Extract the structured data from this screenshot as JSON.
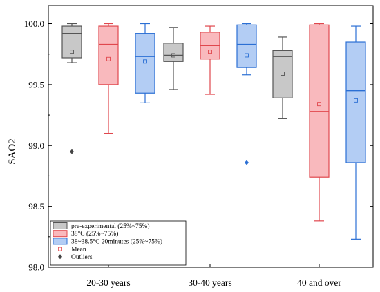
{
  "chart_data": {
    "type": "box",
    "title": "",
    "xlabel": "",
    "ylabel": "SAO2",
    "ylim": [
      98.0,
      100.15
    ],
    "yticks": [
      "98.0",
      "98.5",
      "99.0",
      "99.5",
      "100.0"
    ],
    "ytick_values": [
      98.0,
      98.5,
      99.0,
      99.5,
      100.0
    ],
    "categories": [
      "20-30 years",
      "30-40 years",
      "40 and over"
    ],
    "legend_position": "bottom-left",
    "series": [
      {
        "name": "pre-experimental (25%~75%)",
        "fill": "#c8c8c8",
        "stroke": "#555555",
        "boxes": [
          {
            "whisker_low": 99.68,
            "q1": 99.72,
            "median": 99.92,
            "q3": 99.98,
            "whisker_high": 100.0,
            "mean": 99.77,
            "outliers": [
              98.95
            ]
          },
          {
            "whisker_low": 99.46,
            "q1": 99.69,
            "median": 99.74,
            "q3": 99.84,
            "whisker_high": 99.97,
            "mean": 99.74,
            "outliers": []
          },
          {
            "whisker_low": 99.22,
            "q1": 99.39,
            "median": 99.73,
            "q3": 99.78,
            "whisker_high": 99.89,
            "mean": 99.59,
            "outliers": []
          }
        ]
      },
      {
        "name": "38°C (25%~75%)",
        "fill": "#f9b9bd",
        "stroke": "#e0474d",
        "boxes": [
          {
            "whisker_low": 99.1,
            "q1": 99.5,
            "median": 99.83,
            "q3": 99.98,
            "whisker_high": 100.0,
            "mean": 99.71,
            "outliers": []
          },
          {
            "whisker_low": 99.42,
            "q1": 99.71,
            "median": 99.82,
            "q3": 99.93,
            "whisker_high": 99.98,
            "mean": 99.77,
            "outliers": []
          },
          {
            "whisker_low": 98.38,
            "q1": 98.74,
            "median": 99.28,
            "q3": 99.99,
            "whisker_high": 100.0,
            "mean": 99.34,
            "outliers": []
          }
        ]
      },
      {
        "name": "38~38.5°C 20minutes (25%~75%)",
        "fill": "#b3cdf4",
        "stroke": "#2b6fd4",
        "boxes": [
          {
            "whisker_low": 99.35,
            "q1": 99.43,
            "median": 99.73,
            "q3": 99.92,
            "whisker_high": 100.0,
            "mean": 99.69,
            "outliers": []
          },
          {
            "whisker_low": 99.58,
            "q1": 99.64,
            "median": 99.83,
            "q3": 99.99,
            "whisker_high": 100.0,
            "mean": 99.74,
            "outliers": [
              98.86
            ]
          },
          {
            "whisker_low": 98.23,
            "q1": 98.86,
            "median": 99.45,
            "q3": 99.85,
            "whisker_high": 99.98,
            "mean": 99.37,
            "outliers": []
          }
        ]
      }
    ],
    "legend_extra": [
      {
        "name": "Mean",
        "symbol": "open-square"
      },
      {
        "name": "Outliers",
        "symbol": "diamond"
      }
    ]
  }
}
